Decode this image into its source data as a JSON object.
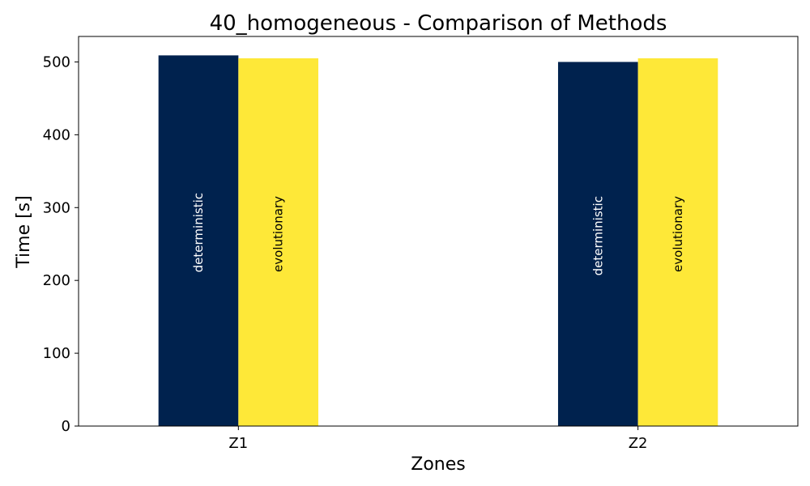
{
  "chart_data": {
    "type": "bar",
    "title": "40_homogeneous - Comparison of Methods",
    "xlabel": "Zones",
    "ylabel": "Time [s]",
    "categories": [
      "Z1",
      "Z2"
    ],
    "series": [
      {
        "name": "deterministic",
        "values": [
          509,
          500
        ],
        "color": "#00224e",
        "label_color": "#ffffff"
      },
      {
        "name": "evolutionary",
        "values": [
          505,
          505
        ],
        "color": "#fee838",
        "label_color": "#000000"
      }
    ],
    "ylim": [
      0,
      535
    ],
    "yticks": [
      0,
      100,
      200,
      300,
      400,
      500
    ],
    "grid": false,
    "legend": "none"
  }
}
